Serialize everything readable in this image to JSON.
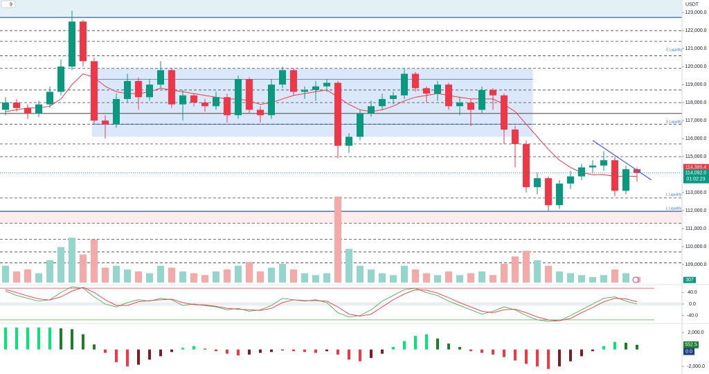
{
  "chart_data": [
    {
      "type": "candlestick",
      "interval": "9",
      "currency": "USDT",
      "open": [
        117600,
        118000,
        117700,
        117400,
        117900,
        118600,
        120000,
        122500,
        120300,
        117000,
        116800,
        118200,
        119200,
        118300,
        119000,
        119800,
        117900,
        118400,
        118000,
        117800,
        118300,
        117300,
        119300,
        117600,
        117300,
        119000,
        119800,
        118600,
        118700,
        118900,
        119100,
        115600,
        116100,
        117400,
        117800,
        118200,
        118400,
        119600,
        118800,
        118500,
        119000,
        117800,
        118000,
        117600,
        118700,
        118400,
        116500,
        115700,
        113300,
        113800,
        112300,
        113500,
        113900,
        114400,
        114500,
        114800,
        113100,
        114300
      ],
      "high": [
        118300,
        118200,
        117900,
        118100,
        118900,
        120400,
        123100,
        122600,
        120500,
        117300,
        118500,
        119600,
        119400,
        119300,
        120300,
        119900,
        118700,
        118500,
        118200,
        118600,
        118500,
        119500,
        119400,
        117800,
        119300,
        120000,
        119900,
        118900,
        119200,
        119300,
        119200,
        116300,
        117600,
        118100,
        118500,
        118600,
        119900,
        119700,
        118900,
        119200,
        119100,
        118300,
        118200,
        118900,
        118800,
        118500,
        116700,
        115900,
        114100,
        113900,
        113700,
        114200,
        114600,
        114800,
        115300,
        115000,
        114500,
        114400
      ],
      "low": [
        117300,
        117500,
        117100,
        117200,
        117700,
        118400,
        119800,
        120000,
        116800,
        116000,
        116600,
        118000,
        117600,
        118100,
        118800,
        117700,
        117000,
        117800,
        117500,
        117600,
        116900,
        117100,
        117400,
        116900,
        117100,
        118800,
        118400,
        118200,
        118100,
        118600,
        114900,
        115200,
        115900,
        117200,
        117600,
        117900,
        118200,
        118600,
        118000,
        118100,
        117600,
        117300,
        116700,
        117400,
        117600,
        115700,
        114400,
        113000,
        112900,
        112000,
        112100,
        113200,
        113700,
        114100,
        114200,
        112800,
        112900,
        113600
      ],
      "close": [
        118000,
        117700,
        117400,
        117900,
        118600,
        120000,
        122500,
        120300,
        117000,
        116800,
        118200,
        119200,
        118300,
        119000,
        119800,
        117900,
        118400,
        118000,
        117800,
        118300,
        117300,
        119300,
        117600,
        117300,
        119000,
        119800,
        118600,
        118700,
        118900,
        119100,
        115600,
        116100,
        117400,
        117800,
        118200,
        118400,
        119600,
        118800,
        118500,
        119000,
        117800,
        118000,
        117600,
        118700,
        118400,
        116500,
        115700,
        113300,
        113800,
        112300,
        113500,
        113900,
        114400,
        114500,
        114800,
        113100,
        114300,
        114092
      ],
      "ma": {
        "color": "#f23645",
        "values": [
          117500,
          117600,
          117700,
          117700,
          117800,
          118200,
          119000,
          119600,
          119400,
          118900,
          118600,
          118500,
          118500,
          118600,
          118800,
          118700,
          118600,
          118500,
          118400,
          118300,
          118200,
          118200,
          118100,
          117900,
          118000,
          118200,
          118400,
          118500,
          118600,
          118700,
          118300,
          117900,
          117600,
          117500,
          117600,
          117800,
          118100,
          118300,
          118400,
          118500,
          118400,
          118300,
          118200,
          118200,
          118200,
          117900,
          117500,
          116800,
          116100,
          115400,
          114800,
          114400,
          114100,
          114000,
          114000,
          113900,
          113900,
          113900
        ]
      },
      "volume": {
        "values": [
          900,
          600,
          700,
          500,
          1200,
          1900,
          2400,
          1500,
          2300,
          800,
          900,
          700,
          600,
          500,
          900,
          800,
          600,
          500,
          400,
          600,
          700,
          900,
          1100,
          600,
          800,
          1000,
          700,
          500,
          400,
          500,
          4600,
          1800,
          900,
          700,
          500,
          400,
          900,
          700,
          500,
          400,
          600,
          400,
          500,
          600,
          400,
          1000,
          1400,
          1700,
          1200,
          900,
          600,
          500,
          400,
          300,
          400,
          700,
          500,
          307
        ],
        "vlim": [
          0,
          5000
        ],
        "up_color": "#93d6cc",
        "down_color": "#f7a8a6"
      },
      "up_color": "#089981",
      "down_color": "#f23645",
      "ylim": [
        108000,
        123700
      ],
      "yticks": [
        {
          "value": 123000,
          "label": "123,000.0"
        },
        {
          "value": 122000,
          "label": "122,000.0"
        },
        {
          "value": 121000,
          "label": "121,000.0"
        },
        {
          "value": 120000,
          "label": "120,000.0"
        },
        {
          "value": 119000,
          "label": "119,000.0"
        },
        {
          "value": 118000,
          "label": "118,000.0"
        },
        {
          "value": 117000,
          "label": "117,000.0"
        },
        {
          "value": 116000,
          "label": "116,000.0"
        },
        {
          "value": 115000,
          "label": "115,000.0"
        },
        {
          "value": 113000,
          "label": "113,000.0"
        },
        {
          "value": 112000,
          "label": "112,000.0"
        },
        {
          "value": 111000,
          "label": "111,000.0"
        },
        {
          "value": 110000,
          "label": "110,000.0"
        },
        {
          "value": 109000,
          "label": "109,000.0"
        }
      ],
      "levels": [
        {
          "value": 122730,
          "style": "solid",
          "color": "#1e5aa8"
        },
        {
          "value": 122000,
          "style": "dashed",
          "color": "#444"
        },
        {
          "value": 121400,
          "style": "dashed",
          "color": "#444"
        },
        {
          "value": 120600,
          "style": "dashed",
          "color": "#444"
        },
        {
          "value": 119900,
          "style": "dashed",
          "color": "#444"
        },
        {
          "value": 118700,
          "style": "dashed",
          "color": "#444"
        },
        {
          "value": 118000,
          "style": "dashed",
          "color": "#444"
        },
        {
          "value": 117400,
          "style": "solid",
          "color": "#666"
        },
        {
          "value": 116800,
          "style": "dashed",
          "color": "#444"
        },
        {
          "value": 115700,
          "style": "dashed",
          "color": "#444"
        },
        {
          "value": 115000,
          "style": "dashed",
          "color": "#444"
        },
        {
          "value": 112700,
          "style": "dashed",
          "color": "#444"
        },
        {
          "value": 111960,
          "style": "solid",
          "color": "#1e5aa8"
        },
        {
          "value": 111300,
          "style": "dashed",
          "color": "#444"
        },
        {
          "value": 110400,
          "style": "dashed",
          "color": "#444"
        },
        {
          "value": 109700,
          "style": "dashed",
          "color": "#444"
        },
        {
          "value": 109100,
          "style": "dashed",
          "color": "#444"
        }
      ],
      "zones": [
        {
          "from": 122730,
          "to": 123700,
          "x": [
            -0.5,
            61
          ],
          "color": "#e3f1f6"
        },
        {
          "from": 116100,
          "to": 119900,
          "x": [
            7.8,
            47.6
          ],
          "color": "#dbe8fb"
        },
        {
          "from": 111300,
          "to": 111960,
          "x": [
            -0.5,
            61
          ],
          "color": "#fdecec"
        }
      ],
      "box_lines": [
        119300,
        116800
      ],
      "liquidity": [
        {
          "text": "S Liquidity",
          "value": 120770
        },
        {
          "text": "S Liquidity",
          "value": 116770
        },
        {
          "text": "L Liquidity",
          "value": 112730
        },
        {
          "text": "L Liquidity",
          "value": 111960
        }
      ],
      "trendline": {
        "x": [
          53,
          58.3
        ],
        "y": [
          115900,
          113700
        ],
        "color": "#3d5afe"
      },
      "ref_price": {
        "value": 114395.4,
        "label": "114,395.4"
      },
      "last_price": {
        "value": 114092,
        "label": "114,092.0"
      },
      "countdown": "01:02:23"
    },
    {
      "type": "oscillator",
      "series": [
        {
          "name": "K",
          "color": "#4caf50",
          "values": [
            45,
            30,
            20,
            10,
            15,
            40,
            60,
            55,
            25,
            0,
            -10,
            5,
            15,
            10,
            20,
            15,
            -5,
            0,
            -5,
            -10,
            -20,
            -15,
            -25,
            -20,
            -5,
            20,
            15,
            10,
            15,
            5,
            -30,
            -45,
            -40,
            -20,
            10,
            30,
            50,
            55,
            40,
            30,
            10,
            -5,
            -20,
            -35,
            -25,
            -10,
            -20,
            -40,
            -55,
            -60,
            -58,
            -40,
            -20,
            0,
            20,
            25,
            10,
            0
          ]
        },
        {
          "name": "D",
          "color": "#f23645",
          "values": [
            50,
            40,
            28,
            18,
            14,
            25,
            45,
            58,
            40,
            15,
            -5,
            -5,
            8,
            12,
            15,
            17,
            5,
            -2,
            -3,
            -8,
            -15,
            -18,
            -20,
            -22,
            -15,
            5,
            15,
            12,
            12,
            10,
            -10,
            -35,
            -42,
            -35,
            -10,
            15,
            35,
            50,
            48,
            38,
            22,
            5,
            -10,
            -25,
            -30,
            -20,
            -18,
            -30,
            -45,
            -55,
            -58,
            -50,
            -30,
            -12,
            8,
            20,
            18,
            8
          ]
        }
      ],
      "hlines": [
        {
          "value": 55,
          "color": "#f23645"
        },
        {
          "value": -55,
          "color": "#4caf50"
        }
      ],
      "ylim": [
        -65,
        65
      ],
      "yticks": [
        {
          "value": 40,
          "label": "40.0"
        },
        {
          "value": 0,
          "label": "0.0"
        },
        {
          "value": -40,
          "label": "-40.0"
        }
      ]
    },
    {
      "type": "histogram",
      "values": [
        2600,
        2600,
        2600,
        2600,
        2600,
        2500,
        2400,
        1800,
        600,
        -400,
        -1500,
        -2000,
        -1800,
        -1200,
        -800,
        -300,
        200,
        400,
        100,
        -200,
        -500,
        -700,
        -600,
        -400,
        -300,
        -100,
        -200,
        -300,
        -400,
        -200,
        -600,
        -1200,
        -1400,
        -1000,
        -500,
        300,
        1000,
        1600,
        1800,
        1300,
        700,
        300,
        -200,
        -400,
        -600,
        -900,
        -1300,
        -1700,
        -2000,
        -2300,
        -2000,
        -1400,
        -800,
        -200,
        400,
        900,
        800,
        552.5
      ],
      "colors": {
        "up_grow": "#00e676",
        "up_fall": "#1b7f2a",
        "down_grow": "#f23645",
        "down_fall": "#7f1d24"
      },
      "ylim": [
        -2900,
        3000
      ],
      "yticks": [
        {
          "value": 2000,
          "label": "2,000.0"
        },
        {
          "value": -2000,
          "label": "-2,000.0"
        }
      ],
      "signal": {
        "value": 0,
        "label": "0.0"
      }
    }
  ]
}
